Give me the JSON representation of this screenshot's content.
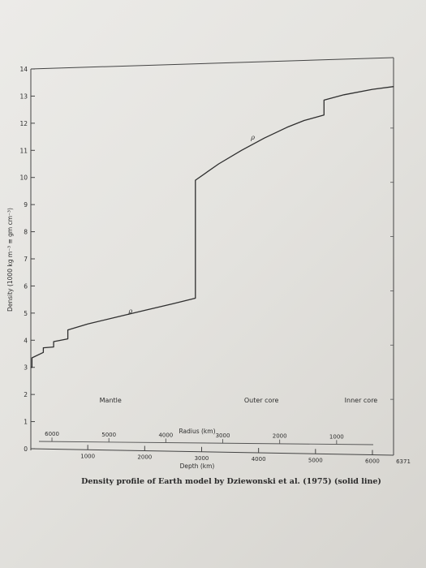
{
  "chart_data": {
    "type": "line",
    "title": "",
    "caption": "Density profile of Earth model by Dziewonski et al. (1975) (solid line)",
    "ylabel": "Density (1000 kg m⁻³ ≡ gm cm⁻³)",
    "xlabel": "Depth (km)",
    "secondary_xlabel": "Radius (km)",
    "xlim": [
      0,
      6371
    ],
    "ylim": [
      0,
      14
    ],
    "y_ticks": [
      "0",
      "1",
      "2",
      "3",
      "4",
      "5",
      "6",
      "7",
      "8",
      "9",
      "10",
      "11",
      "12",
      "13",
      "14"
    ],
    "depth_ticks": [
      {
        "value": 1000,
        "label": "1000"
      },
      {
        "value": 2000,
        "label": "2000"
      },
      {
        "value": 3000,
        "label": "3000"
      },
      {
        "value": 4000,
        "label": "4000"
      },
      {
        "value": 5000,
        "label": "5000"
      },
      {
        "value": 6000,
        "label": "6000"
      },
      {
        "value": 6371,
        "label": "6371"
      }
    ],
    "radius_ticks": [
      {
        "value": 6000,
        "label": "6000"
      },
      {
        "value": 5000,
        "label": "5000"
      },
      {
        "value": 4000,
        "label": "4000"
      },
      {
        "value": 3000,
        "label": "3000"
      },
      {
        "value": 2000,
        "label": "2000"
      },
      {
        "value": 1000,
        "label": "1000"
      }
    ],
    "regions": [
      {
        "label": "Mantle",
        "depth": 1400
      },
      {
        "label": "Outer core",
        "depth": 4050
      },
      {
        "label": "Inner core",
        "depth": 5800
      }
    ],
    "annotations": [
      {
        "text": "ρ",
        "depth": 1750,
        "density": 5.0
      },
      {
        "text": "ρ",
        "depth": 3900,
        "density": 11.4
      }
    ],
    "series": [
      {
        "x": [
          0,
          20,
          20,
          220,
          220,
          400,
          400,
          650,
          650,
          1000,
          1500,
          2000,
          2500,
          2891,
          2891,
          3300,
          3700,
          4100,
          4500,
          4800,
          5150,
          5150,
          5500,
          6000,
          6371
        ],
        "y": [
          3.0,
          3.0,
          3.35,
          3.55,
          3.72,
          3.75,
          3.95,
          4.05,
          4.38,
          4.6,
          4.85,
          5.1,
          5.35,
          5.55,
          9.9,
          10.5,
          11.0,
          11.45,
          11.85,
          12.1,
          12.3,
          12.85,
          13.05,
          13.25,
          13.35
        ]
      }
    ],
    "grid": false
  }
}
